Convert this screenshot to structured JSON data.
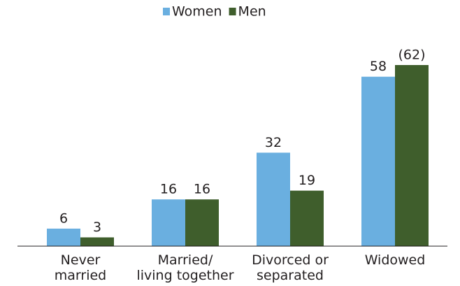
{
  "chart_data": {
    "type": "bar",
    "categories": [
      [
        "Never",
        "married"
      ],
      [
        "Married/",
        "living together"
      ],
      [
        "Divorced or",
        "separated"
      ],
      [
        "Widowed"
      ]
    ],
    "series": [
      {
        "name": "Women",
        "color": "#6aafe0",
        "values": [
          6,
          16,
          32,
          58
        ]
      },
      {
        "name": "Men",
        "color": "#3f5e2c",
        "values": [
          3,
          16,
          19,
          62
        ],
        "value_labels": [
          "3",
          "16",
          "19",
          "(62)"
        ]
      }
    ],
    "legend": "top"
  }
}
